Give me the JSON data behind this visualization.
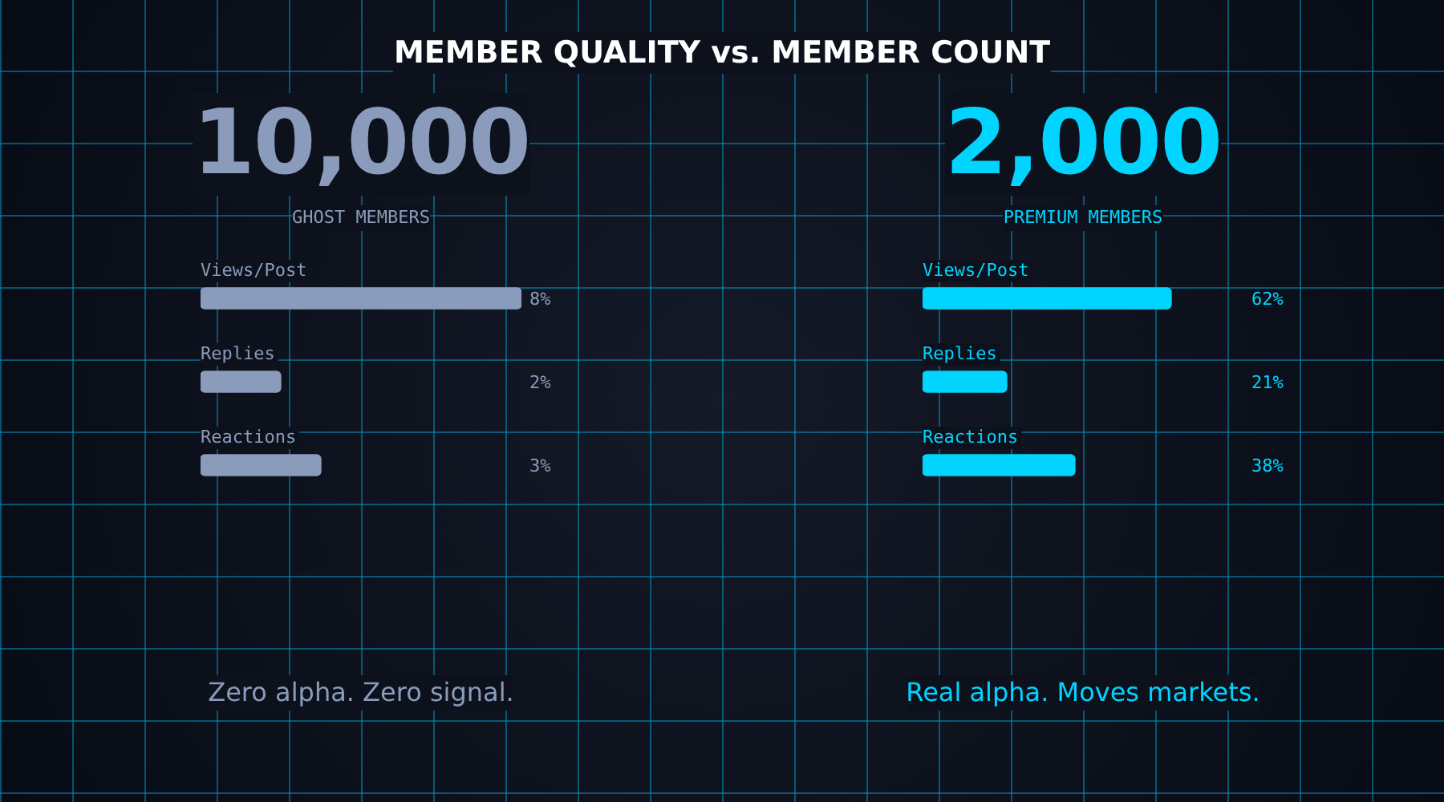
{
  "chart_data": [
    {
      "type": "bar",
      "orientation": "horizontal",
      "title": "10,000",
      "subtitle": "GHOST MEMBERS",
      "annotations": [
        "MEMBER QUALITY vs. MEMBER COUNT",
        "Zero alpha. Zero signal."
      ],
      "categories": [
        "Views/Post",
        "Replies",
        "Reactions"
      ],
      "series": [
        {
          "color": "#8a9bbb",
          "values": [
            8,
            2,
            3
          ],
          "value_labels": [
            "8%",
            "2%",
            "3%"
          ]
        }
      ]
    },
    {
      "type": "bar",
      "orientation": "horizontal",
      "title": "2,000",
      "subtitle": "PREMIUM MEMBERS",
      "annotations": [
        "Real alpha. Moves markets."
      ],
      "categories": [
        "Views/Post",
        "Replies",
        "Reactions"
      ],
      "series": [
        {
          "color": "#00d4ff",
          "values": [
            62,
            21,
            38
          ],
          "value_labels": [
            "62%",
            "21%",
            "38%"
          ]
        }
      ]
    }
  ]
}
